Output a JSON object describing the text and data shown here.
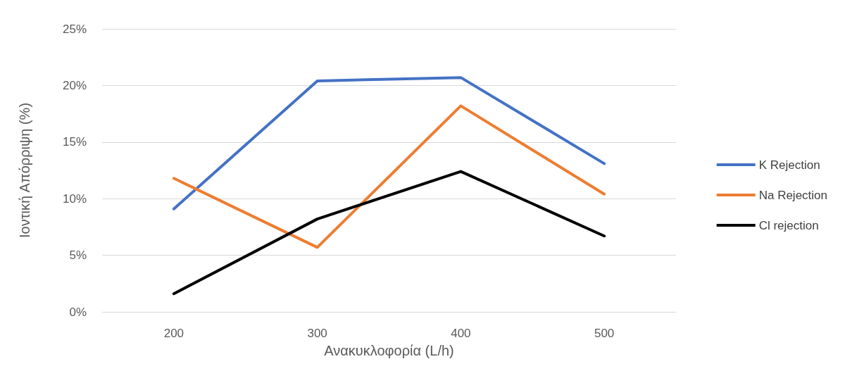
{
  "chart_data": {
    "type": "line",
    "xlabel": "Ανακυκλοφορία (L/h)",
    "ylabel": "Ιοντική Απόρριψη (%)",
    "categories": [
      "200",
      "300",
      "400",
      "500"
    ],
    "series": [
      {
        "name": "K Rejection",
        "color": "#4472c4",
        "values": [
          9.1,
          20.4,
          20.7,
          13.1
        ]
      },
      {
        "name": "Na Rejection",
        "color": "#ed7d31",
        "values": [
          11.8,
          5.7,
          18.2,
          10.4
        ]
      },
      {
        "name": "Cl rejection",
        "color": "#000000",
        "values": [
          1.6,
          8.2,
          12.4,
          6.7
        ]
      }
    ],
    "ylim": [
      0,
      25
    ],
    "yticks": [
      {
        "value": 0,
        "label": "0%"
      },
      {
        "value": 5,
        "label": "5%"
      },
      {
        "value": 10,
        "label": "10%"
      },
      {
        "value": 15,
        "label": "15%"
      },
      {
        "value": 20,
        "label": "20%"
      },
      {
        "value": 25,
        "label": "25%"
      }
    ],
    "grid": "y",
    "legend": "right",
    "marker": "none",
    "line_style": "solid"
  }
}
